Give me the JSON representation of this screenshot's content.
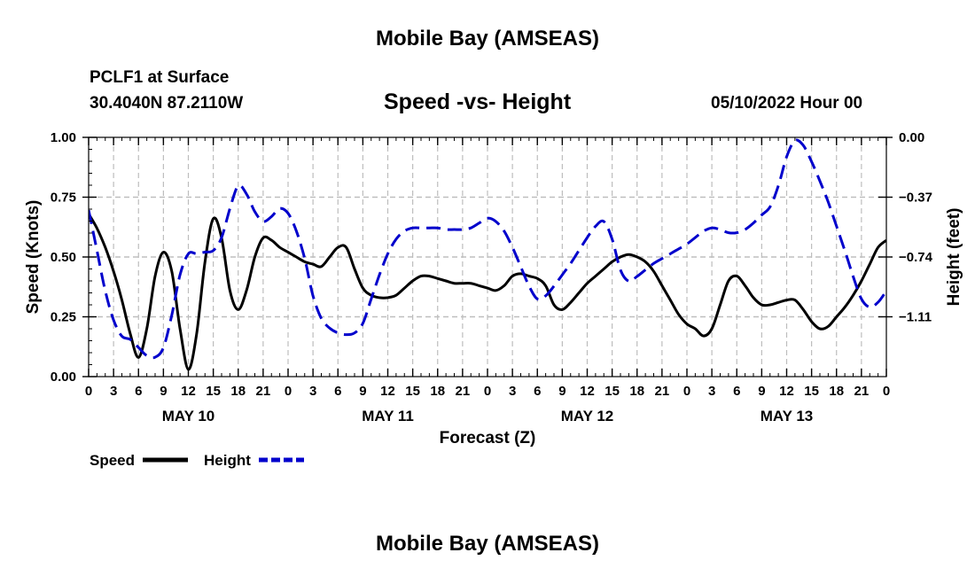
{
  "header": {
    "title": "Mobile Bay (AMSEAS)",
    "station": "PCLF1 at Surface",
    "coords": "30.4040N  87.2110W",
    "subtitle": "Speed -vs- Height",
    "datetime": "05/10/2022 Hour 00",
    "footer_title": "Mobile Bay (AMSEAS)"
  },
  "chart_data": {
    "type": "line",
    "title": "Speed -vs- Height",
    "xlabel": "Forecast (Z)",
    "ylabel": "Speed (Knots)",
    "y2label": "Height (feet)",
    "xlim": [
      0,
      96
    ],
    "ylim": [
      0,
      1
    ],
    "y2lim": [
      -1.48,
      0.0
    ],
    "x_ticks": [
      0,
      3,
      6,
      9,
      12,
      15,
      18,
      21,
      24,
      27,
      30,
      33,
      36,
      39,
      42,
      45,
      48,
      51,
      54,
      57,
      60,
      63,
      66,
      69,
      72,
      75,
      78,
      81,
      84,
      87,
      90,
      93,
      96
    ],
    "x_tick_labels": [
      "0",
      "3",
      "6",
      "9",
      "12",
      "15",
      "18",
      "21",
      "0",
      "3",
      "6",
      "9",
      "12",
      "15",
      "18",
      "21",
      "0",
      "3",
      "6",
      "9",
      "12",
      "15",
      "18",
      "21",
      "0",
      "3",
      "6",
      "9",
      "12",
      "15",
      "18",
      "21",
      "0"
    ],
    "date_labels": [
      {
        "label": "MAY 10",
        "x": 12
      },
      {
        "label": "MAY 11",
        "x": 36
      },
      {
        "label": "MAY 12",
        "x": 60
      },
      {
        "label": "MAY 13",
        "x": 84
      }
    ],
    "y_ticks": [
      0,
      0.25,
      0.5,
      0.75,
      1.0
    ],
    "y_tick_labels": [
      "0.00",
      "0.25",
      "0.50",
      "0.75",
      "1.00"
    ],
    "y2_ticks": [
      0.0,
      -0.37,
      -0.74,
      -1.11
    ],
    "y2_tick_labels": [
      "0.00",
      "−0.37",
      "−0.74",
      "−1.11"
    ],
    "grid": true,
    "series": [
      {
        "name": "Speed",
        "axis": "left",
        "color": "#000000",
        "style": "solid",
        "x": [
          0,
          1,
          2,
          3,
          4,
          5,
          6,
          7,
          8,
          9,
          10,
          11,
          12,
          13,
          14,
          15,
          16,
          17,
          18,
          19,
          20,
          21,
          22,
          23,
          24,
          25,
          26,
          27,
          28,
          29,
          30,
          31,
          32,
          33,
          34,
          35,
          36,
          37,
          38,
          39,
          40,
          41,
          42,
          43,
          44,
          45,
          46,
          47,
          48,
          49,
          50,
          51,
          52,
          53,
          54,
          55,
          56,
          57,
          58,
          59,
          60,
          61,
          62,
          63,
          64,
          65,
          66,
          67,
          68,
          69,
          70,
          71,
          72,
          73,
          74,
          75,
          76,
          77,
          78,
          79,
          80,
          81,
          82,
          83,
          84,
          85,
          86,
          87,
          88,
          89,
          90,
          91,
          92,
          93,
          94,
          95,
          96
        ],
        "values": [
          0.68,
          0.62,
          0.54,
          0.44,
          0.32,
          0.18,
          0.08,
          0.2,
          0.42,
          0.52,
          0.44,
          0.2,
          0.03,
          0.18,
          0.48,
          0.66,
          0.58,
          0.36,
          0.28,
          0.36,
          0.5,
          0.58,
          0.57,
          0.54,
          0.52,
          0.5,
          0.48,
          0.47,
          0.46,
          0.5,
          0.54,
          0.54,
          0.45,
          0.37,
          0.34,
          0.33,
          0.33,
          0.34,
          0.37,
          0.4,
          0.42,
          0.42,
          0.41,
          0.4,
          0.39,
          0.39,
          0.39,
          0.38,
          0.37,
          0.36,
          0.38,
          0.42,
          0.43,
          0.42,
          0.41,
          0.38,
          0.3,
          0.28,
          0.31,
          0.35,
          0.39,
          0.42,
          0.45,
          0.48,
          0.5,
          0.51,
          0.5,
          0.48,
          0.44,
          0.38,
          0.32,
          0.26,
          0.22,
          0.2,
          0.17,
          0.2,
          0.3,
          0.4,
          0.42,
          0.38,
          0.33,
          0.3,
          0.3,
          0.31,
          0.32,
          0.32,
          0.28,
          0.23,
          0.2,
          0.21,
          0.25,
          0.29,
          0.34,
          0.4,
          0.47,
          0.54,
          0.57
        ]
      },
      {
        "name": "Height",
        "axis": "right",
        "color": "#0000cc",
        "style": "dashed",
        "x": [
          0,
          1,
          2,
          3,
          4,
          5,
          6,
          7,
          8,
          9,
          10,
          11,
          12,
          13,
          14,
          15,
          16,
          17,
          18,
          19,
          20,
          21,
          22,
          23,
          24,
          25,
          26,
          27,
          28,
          29,
          30,
          31,
          32,
          33,
          34,
          35,
          36,
          37,
          38,
          39,
          40,
          41,
          42,
          43,
          44,
          45,
          46,
          47,
          48,
          49,
          50,
          51,
          52,
          53,
          54,
          55,
          56,
          57,
          58,
          59,
          60,
          61,
          62,
          63,
          64,
          65,
          66,
          67,
          68,
          69,
          70,
          71,
          72,
          73,
          74,
          75,
          76,
          77,
          78,
          79,
          80,
          81,
          82,
          83,
          84,
          85,
          86,
          87,
          88,
          89,
          90,
          91,
          92,
          93,
          94,
          95,
          96
        ],
        "values": [
          -0.45,
          -0.7,
          -0.95,
          -1.13,
          -1.23,
          -1.25,
          -1.3,
          -1.35,
          -1.36,
          -1.3,
          -1.1,
          -0.85,
          -0.72,
          -0.72,
          -0.71,
          -0.7,
          -0.62,
          -0.44,
          -0.3,
          -0.35,
          -0.46,
          -0.52,
          -0.49,
          -0.44,
          -0.47,
          -0.58,
          -0.75,
          -0.98,
          -1.12,
          -1.18,
          -1.21,
          -1.22,
          -1.21,
          -1.15,
          -1.0,
          -0.85,
          -0.72,
          -0.63,
          -0.58,
          -0.56,
          -0.56,
          -0.56,
          -0.56,
          -0.57,
          -0.57,
          -0.57,
          -0.56,
          -0.53,
          -0.5,
          -0.52,
          -0.58,
          -0.68,
          -0.8,
          -0.92,
          -1.0,
          -0.98,
          -0.92,
          -0.85,
          -0.78,
          -0.7,
          -0.62,
          -0.55,
          -0.52,
          -0.63,
          -0.82,
          -0.89,
          -0.86,
          -0.82,
          -0.78,
          -0.75,
          -0.72,
          -0.69,
          -0.66,
          -0.62,
          -0.58,
          -0.56,
          -0.57,
          -0.59,
          -0.59,
          -0.57,
          -0.53,
          -0.48,
          -0.43,
          -0.3,
          -0.12,
          -0.02,
          -0.05,
          -0.15,
          -0.27,
          -0.4,
          -0.55,
          -0.7,
          -0.86,
          -1.0,
          -1.05,
          -1.02,
          -0.95
        ]
      }
    ],
    "legend": [
      {
        "label": "Speed",
        "color": "#000000",
        "style": "solid"
      },
      {
        "label": "Height",
        "color": "#0000cc",
        "style": "dashed"
      }
    ],
    "legend_position": "bottom-left"
  }
}
